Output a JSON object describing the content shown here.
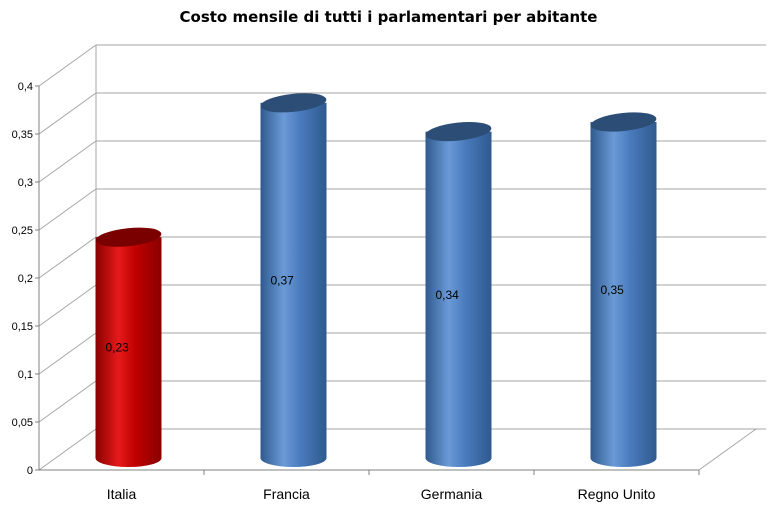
{
  "chart_data": {
    "type": "bar",
    "title": "Costo mensile di tutti i parlamentari  per abitante",
    "categories": [
      "Italia",
      "Francia",
      "Germania",
      "Regno Unito"
    ],
    "values": [
      0.23,
      0.37,
      0.34,
      0.35
    ],
    "data_labels": [
      "0,23",
      "0,37",
      "0,34",
      "0,35"
    ],
    "y_ticks": [
      "0",
      "0,05",
      "0,1",
      "0,15",
      "0,2",
      "0,25",
      "0,3",
      "0,35",
      "0,4"
    ],
    "ylim": [
      0,
      0.4
    ],
    "xlabel": "",
    "ylabel": "",
    "grid": true,
    "legend": "none",
    "style": "3d-cylinder",
    "colors": {
      "highlight": "#c00000",
      "highlight_dark": "#7a0000",
      "default": "#4f81bd",
      "default_dark": "#2c4d75",
      "grid": "#a6a6a6"
    }
  }
}
